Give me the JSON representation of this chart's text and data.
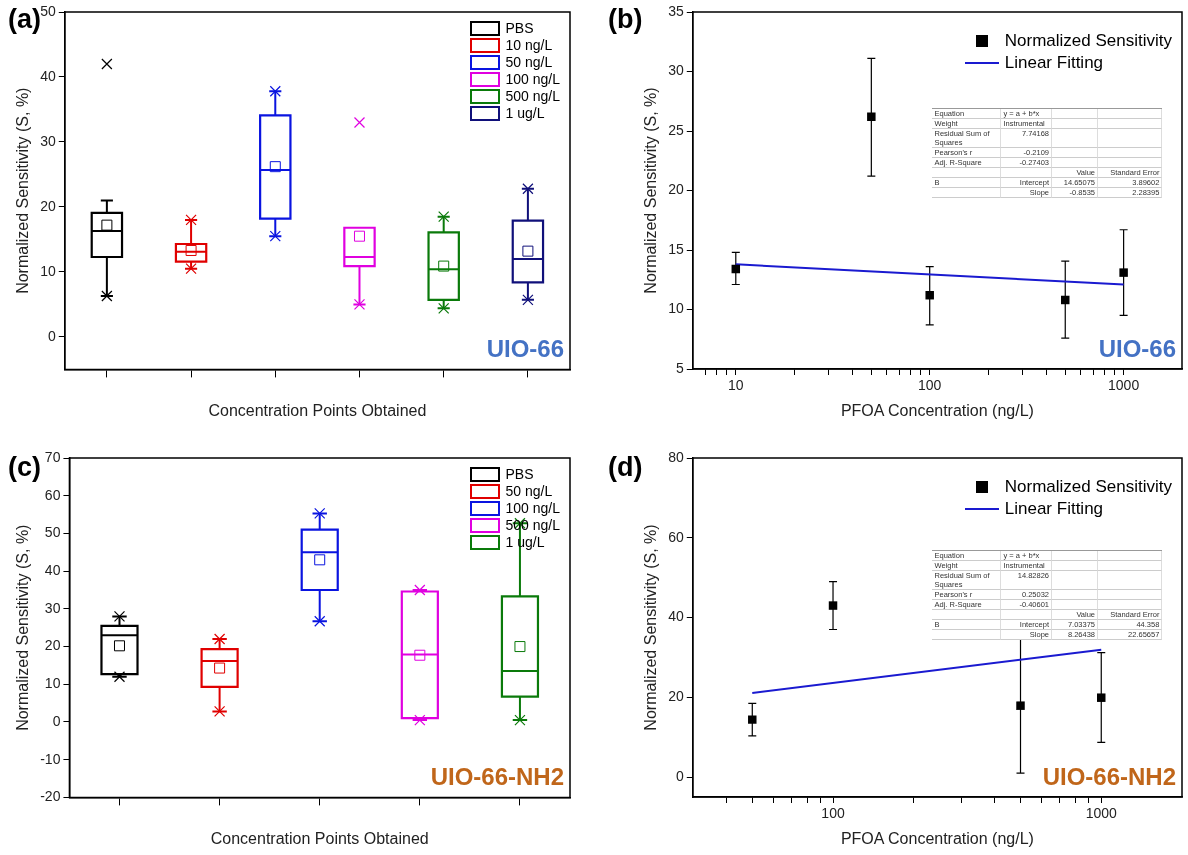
{
  "chart_data": [
    {
      "type": "box",
      "title": "(a)",
      "xlabel": "Concentration Points Obtained",
      "ylabel": "Normalized Sensitivity (S, %)",
      "categories": [
        null,
        null,
        null,
        null,
        null,
        null
      ],
      "ylim": [
        -5,
        50
      ],
      "yticks": [
        0,
        10,
        20,
        30,
        40,
        50
      ],
      "legend": "top right",
      "annotations": [
        "UIO-66"
      ],
      "series": [
        {
          "name": "PBS",
          "color": "#000000",
          "boxes": [
            {
              "low": 6.3,
              "q1": 12.3,
              "median": 16.3,
              "q3": 19.1,
              "high": 21,
              "mean": 17.2,
              "outliers": [
                42,
                6.3
              ]
            },
            null,
            null,
            null,
            null,
            null
          ]
        },
        {
          "name": "10 ng/L",
          "color": "#e00000",
          "boxes": [
            null,
            {
              "low": 10.5,
              "q1": 11.6,
              "median": 13.1,
              "q3": 14.3,
              "high": 18,
              "mean": 13.3,
              "outliers": [
                18,
                10.5
              ]
            },
            null,
            null,
            null,
            null
          ]
        },
        {
          "name": "50 ng/L",
          "color": "#0a14e0",
          "boxes": [
            null,
            null,
            {
              "low": 15.5,
              "q1": 18.2,
              "median": 25.7,
              "q3": 34.1,
              "high": 37.8,
              "mean": 26.2,
              "outliers": [
                37.8,
                15.5
              ]
            },
            null,
            null,
            null
          ]
        },
        {
          "name": "100 ng/L",
          "color": "#e000e0",
          "boxes": [
            null,
            null,
            null,
            {
              "low": 5,
              "q1": 10.9,
              "median": 12.3,
              "q3": 16.8,
              "high": 16.8,
              "mean": 15.5,
              "outliers": [
                33,
                5
              ]
            },
            null,
            null
          ]
        },
        {
          "name": "500 ng/L",
          "color": "#0a7a0a",
          "boxes": [
            null,
            null,
            null,
            null,
            {
              "low": 4.4,
              "q1": 5.7,
              "median": 10.4,
              "q3": 16.1,
              "high": 18.5,
              "mean": 10.9,
              "outliers": [
                18.5,
                4.4
              ]
            },
            null
          ]
        },
        {
          "name": "1 ug/L",
          "color": "#10107a",
          "boxes": [
            null,
            null,
            null,
            null,
            null,
            {
              "low": 5.7,
              "q1": 8.4,
              "median": 12,
              "q3": 17.9,
              "high": 22.8,
              "mean": 13.2,
              "outliers": [
                22.8,
                5.7
              ]
            }
          ]
        }
      ]
    },
    {
      "type": "scatter",
      "title": "(b)",
      "xlabel": "PFOA Concentration (ng/L)",
      "ylabel": "Normalized Sensitivity (S, %)",
      "log": "x",
      "xlim": [
        6,
        2000
      ],
      "xticks": [
        {
          "value": 7,
          "label": null
        },
        {
          "value": 8,
          "label": null
        },
        {
          "value": 9,
          "label": null
        },
        10,
        {
          "value": 20,
          "label": null
        },
        {
          "value": 30,
          "label": null
        },
        {
          "value": 40,
          "label": null
        },
        {
          "value": 50,
          "label": null
        },
        {
          "value": 60,
          "label": null
        },
        {
          "value": 70,
          "label": null
        },
        {
          "value": 80,
          "label": null
        },
        {
          "value": 90,
          "label": null
        },
        100,
        {
          "value": 200,
          "label": null
        },
        {
          "value": 300,
          "label": null
        },
        {
          "value": 400,
          "label": null
        },
        {
          "value": 500,
          "label": null
        },
        {
          "value": 600,
          "label": null
        },
        {
          "value": 700,
          "label": null
        },
        {
          "value": 800,
          "label": null
        },
        {
          "value": 900,
          "label": null
        },
        1000
      ],
      "ylim": [
        5,
        35
      ],
      "yticks": [
        5,
        10,
        15,
        20,
        25,
        30,
        35
      ],
      "legend": "top right",
      "marker": "square",
      "annotations": [
        "UIO-66",
        "Equation",
        "y = a + b*x",
        "Weight",
        "Instrumental",
        "Residual Sum of Squares",
        "7.74168",
        "Pearson's r",
        "-0.2109",
        "Adj. R-Square",
        "-0.27403",
        "Value",
        "Standard Error",
        "B",
        "Intercept",
        "14.65075",
        "3.89602",
        "Slope",
        "-0.8535",
        "2.28395"
      ],
      "series": [
        {
          "name": "Normalized Sensitivity",
          "type": "scatter",
          "color": "#000000",
          "x": [
            10,
            50,
            100,
            500,
            1000
          ],
          "values": [
            13.4,
            26.2,
            11.2,
            10.8,
            13.1
          ],
          "errors": [
            [
              12.1,
              14.8
            ],
            [
              21.2,
              31.1
            ],
            [
              8.7,
              13.6
            ],
            [
              7.6,
              14.06
            ],
            [
              9.5,
              16.7
            ]
          ]
        },
        {
          "name": "Linear Fitting",
          "type": "line",
          "marker": "none",
          "color": "#1a1ad0",
          "x": [
            10,
            1000
          ],
          "values": [
            13.8,
            12.1
          ]
        }
      ]
    },
    {
      "type": "box",
      "title": "(c)",
      "xlabel": "Concentration Points Obtained",
      "ylabel": "Normalized Sensitivity (S, %)",
      "categories": [
        null,
        null,
        null,
        null,
        null
      ],
      "ylim": [
        -20,
        70
      ],
      "yticks": [
        -20,
        -10,
        0,
        10,
        20,
        30,
        40,
        50,
        60,
        70
      ],
      "legend": "top right",
      "annotations": [
        "UIO-66-NH2"
      ],
      "series": [
        {
          "name": "PBS",
          "color": "#000000",
          "boxes": [
            {
              "low": 12,
              "q1": 12.7,
              "median": 23,
              "q3": 25.5,
              "high": 28,
              "mean": 20.2,
              "outliers": [
                28,
                12
              ]
            },
            null,
            null,
            null,
            null
          ]
        },
        {
          "name": "50 ng/L",
          "color": "#e00000",
          "boxes": [
            null,
            {
              "low": 2.8,
              "q1": 9.3,
              "median": 16.2,
              "q3": 19.3,
              "high": 22,
              "mean": 14.3,
              "outliers": [
                22,
                2.8
              ]
            },
            null,
            null,
            null
          ]
        },
        {
          "name": "100 ng/L",
          "color": "#0a14e0",
          "boxes": [
            null,
            null,
            {
              "low": 26.7,
              "q1": 35,
              "median": 45,
              "q3": 51,
              "high": 55.3,
              "mean": 43,
              "outliers": [
                55.3,
                26.7
              ]
            },
            null,
            null
          ]
        },
        {
          "name": "500 ng/L",
          "color": "#e000e0",
          "boxes": [
            null,
            null,
            null,
            {
              "low": 0.5,
              "q1": 1,
              "median": 17.9,
              "q3": 34.6,
              "high": 35,
              "mean": 17.7,
              "outliers": [
                35,
                0.5
              ]
            },
            null
          ]
        },
        {
          "name": "1 ug/L",
          "color": "#0a7a0a",
          "boxes": [
            null,
            null,
            null,
            null,
            {
              "low": 0.5,
              "q1": 6.7,
              "median": 13.5,
              "q3": 33.3,
              "high": 52.7,
              "mean": 20,
              "outliers": [
                52.7,
                0.5
              ]
            }
          ]
        }
      ]
    },
    {
      "type": "scatter",
      "title": "(d)",
      "xlabel": "PFOA Concentration (ng/L)",
      "ylabel": "Normalized Sensitivity (S, %)",
      "log": "x",
      "xlim": [
        30,
        2000
      ],
      "xticks": [
        {
          "value": 40,
          "label": null
        },
        {
          "value": 50,
          "label": null
        },
        {
          "value": 60,
          "label": null
        },
        {
          "value": 70,
          "label": null
        },
        {
          "value": 80,
          "label": null
        },
        {
          "value": 90,
          "label": null
        },
        100,
        {
          "value": 200,
          "label": null
        },
        {
          "value": 300,
          "label": null
        },
        {
          "value": 400,
          "label": null
        },
        {
          "value": 500,
          "label": null
        },
        {
          "value": 600,
          "label": null
        },
        {
          "value": 700,
          "label": null
        },
        {
          "value": 800,
          "label": null
        },
        {
          "value": 900,
          "label": null
        },
        1000
      ],
      "ylim": [
        -5,
        80
      ],
      "yticks": [
        0,
        20,
        40,
        60,
        80
      ],
      "legend": "top right",
      "marker": "square",
      "annotations": [
        "UIO-66-NH2",
        "Equation",
        "y = a + b*x",
        "Weight",
        "Instrumental",
        "Residual Sum of Squares",
        "14.82826",
        "Pearson's r",
        "0.25032",
        "Adj. R-Square",
        "-0.40601",
        "Value",
        "Standard Error",
        "B",
        "Intercept",
        "7.03375",
        "44.358",
        "Slope",
        "8.26438",
        "22.65657"
      ],
      "series": [
        {
          "name": "Normalized Sensitivity",
          "type": "scatter",
          "color": "#000000",
          "x": [
            50,
            100,
            500,
            1000
          ],
          "values": [
            14.4,
            43,
            17.9,
            19.9
          ],
          "errors": [
            [
              10.35,
              18.5
            ],
            [
              37,
              49
            ],
            [
              1,
              34.6
            ],
            [
              8.7,
              31.2
            ]
          ]
        },
        {
          "name": "Linear Fitting",
          "type": "line",
          "marker": "none",
          "color": "#1a1ad0",
          "x": [
            50,
            1000
          ],
          "values": [
            21.1,
            31.9
          ]
        }
      ]
    }
  ]
}
